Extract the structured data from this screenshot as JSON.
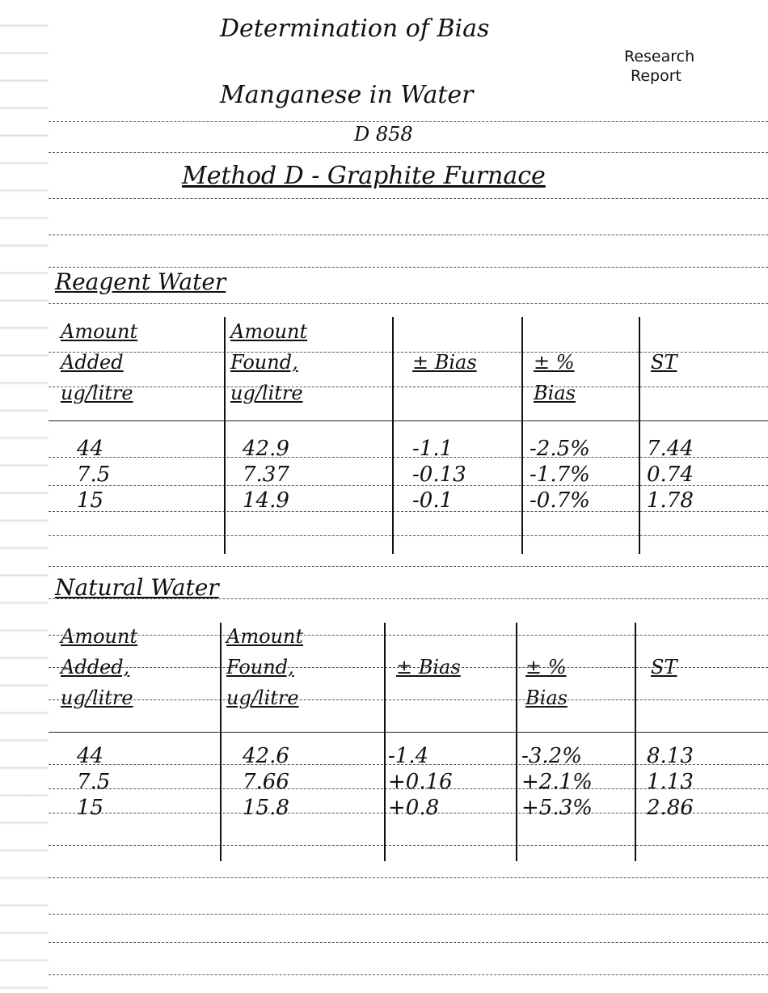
{
  "header": {
    "title_line1": "Determination of Bias",
    "title_line2": "Manganese in Water",
    "title_line3": "D 858",
    "stamp_line1": "Research",
    "stamp_line2": "Report",
    "method": "Method D - Graphite Furnace"
  },
  "reagent_water": {
    "heading": "Reagent Water",
    "columns": [
      "Amount Added, ug/litre",
      "Amount Found, ug/litre",
      "± Bias",
      "± % Bias",
      "ST"
    ],
    "column_lines": [
      [
        "Amount",
        "Added",
        "ug/litre"
      ],
      [
        "Amount",
        "Found,",
        "ug/litre"
      ],
      [
        "± Bias"
      ],
      [
        "± %",
        "Bias"
      ],
      [
        "ST"
      ]
    ],
    "rows": [
      [
        "44",
        "42.9",
        "-1.1",
        "-2.5%",
        "7.44"
      ],
      [
        "7.5",
        "7.37",
        "-0.13",
        "-1.7%",
        "0.74"
      ],
      [
        "15",
        "14.9",
        "-0.1",
        "-0.7%",
        "1.78"
      ]
    ]
  },
  "natural_water": {
    "heading": "Natural Water",
    "columns": [
      "Amount Added, ug/litre",
      "Amount Found, ug/litre",
      "± Bias",
      "± % Bias",
      "ST"
    ],
    "column_lines": [
      [
        "Amount",
        "Added,",
        "ug/litre"
      ],
      [
        "Amount",
        "Found,",
        "ug/litre"
      ],
      [
        "± Bias"
      ],
      [
        "± %",
        "Bias"
      ],
      [
        "ST"
      ]
    ],
    "rows": [
      [
        "44",
        "42.6",
        "-1.4",
        "-3.2%",
        "8.13"
      ],
      [
        "7.5",
        "7.66",
        "+0.16",
        "+2.1%",
        "1.13"
      ],
      [
        "15",
        "15.8",
        "+0.8",
        "+5.3%",
        "2.86"
      ]
    ]
  }
}
